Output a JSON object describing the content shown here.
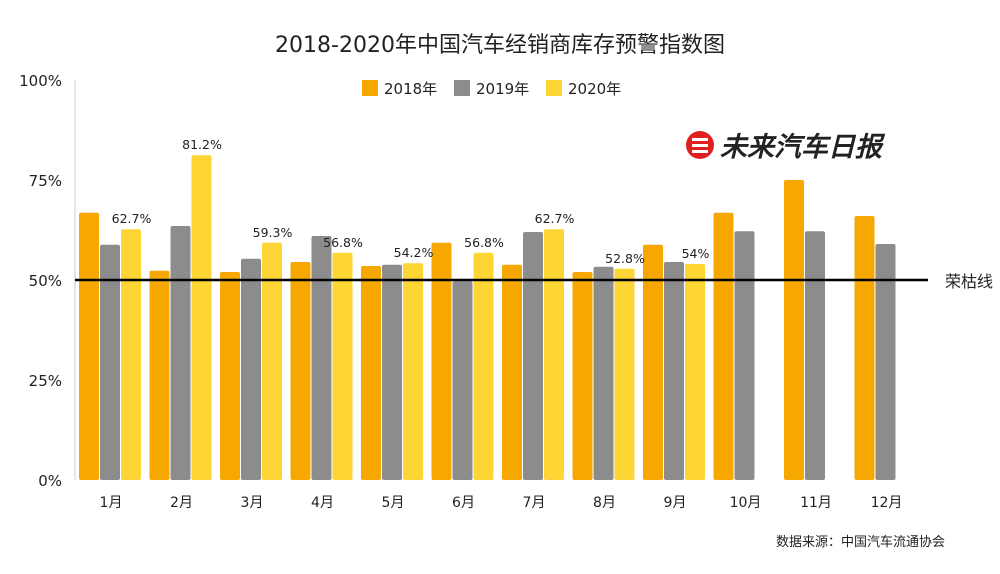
{
  "chart_data": {
    "type": "bar",
    "title": "2018-2020年中国汽车经销商库存预警指数图",
    "categories": [
      "1月",
      "2月",
      "3月",
      "4月",
      "5月",
      "6月",
      "7月",
      "8月",
      "9月",
      "10月",
      "11月",
      "12月"
    ],
    "series": [
      {
        "name": "2018年",
        "color": "#F7A800",
        "values": [
          66.8,
          52.3,
          52.0,
          54.5,
          53.5,
          59.3,
          53.8,
          52.0,
          58.8,
          66.8,
          75.0,
          66.0
        ]
      },
      {
        "name": "2019年",
        "color": "#8C8C8C",
        "values": [
          58.8,
          63.5,
          55.3,
          61.0,
          53.8,
          49.7,
          62.0,
          53.3,
          54.5,
          62.2,
          62.2,
          59.0
        ]
      },
      {
        "name": "2020年",
        "color": "#FDD535",
        "values": [
          62.7,
          81.2,
          59.3,
          56.8,
          54.2,
          56.8,
          62.7,
          52.8,
          54.0,
          null,
          null,
          null
        ]
      }
    ],
    "data_labels": [
      "62.7%",
      "81.2%",
      "59.3%",
      "56.8%",
      "54.2%",
      "56.8%",
      "62.7%",
      "52.8%",
      "54%"
    ],
    "yticks": [
      "0%",
      "25%",
      "50%",
      "75%",
      "100%"
    ],
    "ylim": [
      0,
      100
    ],
    "reference_line": {
      "value": 50,
      "label": "荣枯线"
    },
    "legend_position": "top",
    "grid": false,
    "source": "数据来源：中国汽车流通协会"
  },
  "logo": {
    "text": "未来汽车日报",
    "color": "#E02020"
  }
}
